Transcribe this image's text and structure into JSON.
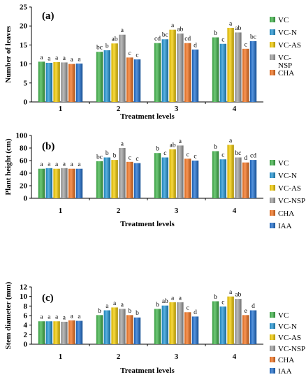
{
  "chart_data": [
    {
      "type": "bar",
      "panel_label": "(a)",
      "xlabel": "Treatment levels",
      "ylabel": "Number of leaves",
      "ylim": [
        0,
        25
      ],
      "yticks": [
        0,
        5,
        10,
        15,
        20,
        25
      ],
      "categories": [
        "1",
        "2",
        "3",
        "4"
      ],
      "series": [
        {
          "name": "VC",
          "values": [
            10.6,
            13.2,
            15.5,
            17.0
          ],
          "letters": [
            "a",
            "bc",
            "cd",
            "b"
          ]
        },
        {
          "name": "VC-N",
          "values": [
            10.3,
            13.6,
            16.5,
            15.3
          ],
          "letters": [
            "a",
            "b",
            "bc",
            "c"
          ]
        },
        {
          "name": "VC-AS",
          "values": [
            10.5,
            15.4,
            19.0,
            19.5
          ],
          "letters": [
            "a",
            "ab",
            "a",
            "a"
          ]
        },
        {
          "name": "VC-NSP",
          "values": [
            10.4,
            17.7,
            18.0,
            18.3
          ],
          "letters": [
            "a",
            "a",
            "ab",
            "ab"
          ]
        },
        {
          "name": "CHA",
          "values": [
            10.0,
            11.7,
            15.5,
            14.0
          ],
          "letters": [
            "a",
            "c",
            "cd",
            "c"
          ]
        },
        {
          "name": "",
          "values": [
            10.1,
            11.2,
            13.8,
            16.0
          ],
          "letters": [
            "a",
            "c",
            "d",
            "bc"
          ]
        }
      ],
      "legend": [
        "VC",
        "VC-N",
        "VC-AS",
        "VC-NSP",
        "CHA"
      ],
      "legend_position": "right"
    },
    {
      "type": "bar",
      "panel_label": "(b)",
      "xlabel": "Treatment levels",
      "ylabel": "Plant height (cm)",
      "ylim": [
        0,
        100
      ],
      "yticks": [
        0,
        20,
        40,
        60,
        80,
        100
      ],
      "categories": [
        "1",
        "2",
        "3",
        "4"
      ],
      "series": [
        {
          "name": "VC",
          "values": [
            47,
            59,
            72,
            75
          ],
          "letters": [
            "a",
            "bc",
            "b",
            "b"
          ]
        },
        {
          "name": "VC-N",
          "values": [
            48,
            65,
            65,
            62
          ],
          "letters": [
            "a",
            "b",
            "c",
            "c"
          ]
        },
        {
          "name": "VC-AS",
          "values": [
            47,
            61,
            78,
            85
          ],
          "letters": [
            "a",
            "b",
            "ab",
            "a"
          ]
        },
        {
          "name": "VC-NSP",
          "values": [
            48,
            80,
            84,
            65
          ],
          "letters": [
            "a",
            "a",
            "a",
            "bc"
          ]
        },
        {
          "name": "CHA",
          "values": [
            47,
            58,
            63,
            57
          ],
          "letters": [
            "a",
            "c",
            "c",
            "d"
          ]
        },
        {
          "name": "IAA",
          "values": [
            47,
            56,
            60,
            61
          ],
          "letters": [
            "a",
            "c",
            "c",
            "cd"
          ]
        }
      ],
      "legend": [
        "VC",
        "VC-N",
        "VC-AS",
        "VC-NSP",
        "CHA",
        "IAA"
      ],
      "legend_position": "right"
    },
    {
      "type": "bar",
      "panel_label": "(c)",
      "xlabel": "Treatment levels",
      "ylabel": "Stem diameter (mm)",
      "ylim": [
        0,
        12
      ],
      "yticks": [
        0,
        2,
        4,
        6,
        8,
        10,
        12
      ],
      "categories": [
        "1",
        "2",
        "3",
        "4"
      ],
      "series": [
        {
          "name": "VC",
          "values": [
            4.8,
            6.1,
            7.4,
            9.0
          ],
          "letters": [
            "a",
            "b",
            "b",
            "b"
          ]
        },
        {
          "name": "VC-N",
          "values": [
            4.8,
            7.1,
            8.1,
            7.9
          ],
          "letters": [
            "a",
            "a",
            "ab",
            "c"
          ]
        },
        {
          "name": "VC-AS",
          "values": [
            4.8,
            7.7,
            8.8,
            10.0
          ],
          "letters": [
            "a",
            "a",
            "a",
            "a"
          ]
        },
        {
          "name": "VC-NSP",
          "values": [
            4.7,
            7.4,
            8.8,
            9.5
          ],
          "letters": [
            "a",
            "a",
            "a",
            "ab"
          ]
        },
        {
          "name": "CHA",
          "values": [
            5.0,
            6.1,
            6.7,
            6.1
          ],
          "letters": [
            "a",
            "b",
            "c",
            "e"
          ]
        },
        {
          "name": "IAA",
          "values": [
            4.9,
            5.6,
            5.8,
            7.1
          ],
          "letters": [
            "a",
            "b",
            "d",
            "d"
          ]
        }
      ],
      "legend": [
        "VC",
        "VC-N",
        "VC-AS",
        "VC-NSP",
        "CHA",
        "IAA"
      ],
      "legend_position": "right"
    }
  ],
  "colors": {
    "VC": "#3fb549",
    "VC-N": "#2196d6",
    "VC-AS": "#f5cd00",
    "VC-NSP": "#a3a3a3",
    "CHA": "#f5731e",
    "IAA": "#1e6fd0"
  },
  "series_keys": [
    "VC",
    "VC-N",
    "VC-AS",
    "VC-NSP",
    "CHA",
    "IAA"
  ]
}
